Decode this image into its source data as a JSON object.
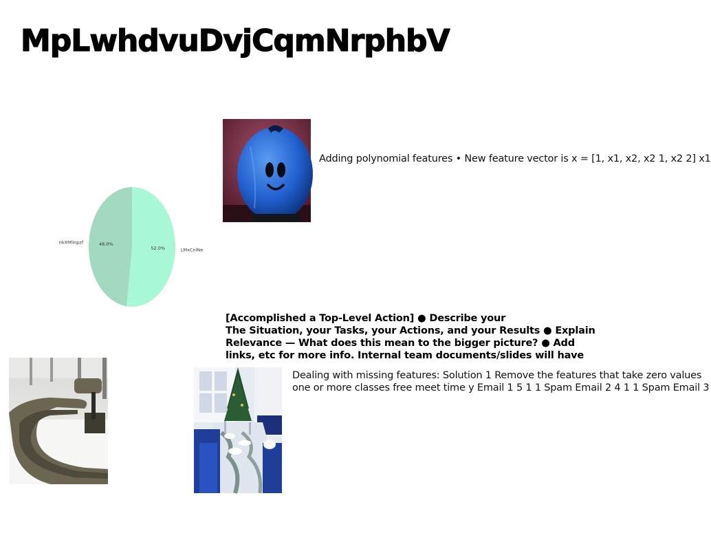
{
  "title": "MpLwhdvuDvjCqmNrphbV",
  "chart_data": {
    "type": "pie",
    "labels": [
      "nkXMlinpzf",
      "LMxCnlNe"
    ],
    "values": [
      48.0,
      52.0
    ],
    "value_labels": [
      "48.0%",
      "52.0%"
    ],
    "colors": [
      "#a3d9c0",
      "#a8f8d8"
    ]
  },
  "text_blocks": {
    "polynomial": "Adding polynomial features • New feature vector is x = [1, x1, x2, x2 1, x2 2] x1",
    "star_lines": [
      "[Accomplished a Top-Level Action] ● Describe your",
      "The Situation, your Tasks, your Actions, and your Results ● Explain",
      "Relevance — What does this mean to the bigger picture? ● Add",
      "links, etc for more info. Internal team documents/slides will have"
    ],
    "missing_lines": [
      "Dealing with missing features: Solution 1 Remove the features that take zero values",
      "one or more classes free meet time y Email 1 5 1 1 Spam Email 2 4 1 1 Spam Email 3"
    ]
  },
  "colors": {
    "blueberry_bg": "#6e2a3a",
    "blueberry": "#2f6fd8",
    "tablecloth": "#1f3f9a"
  }
}
